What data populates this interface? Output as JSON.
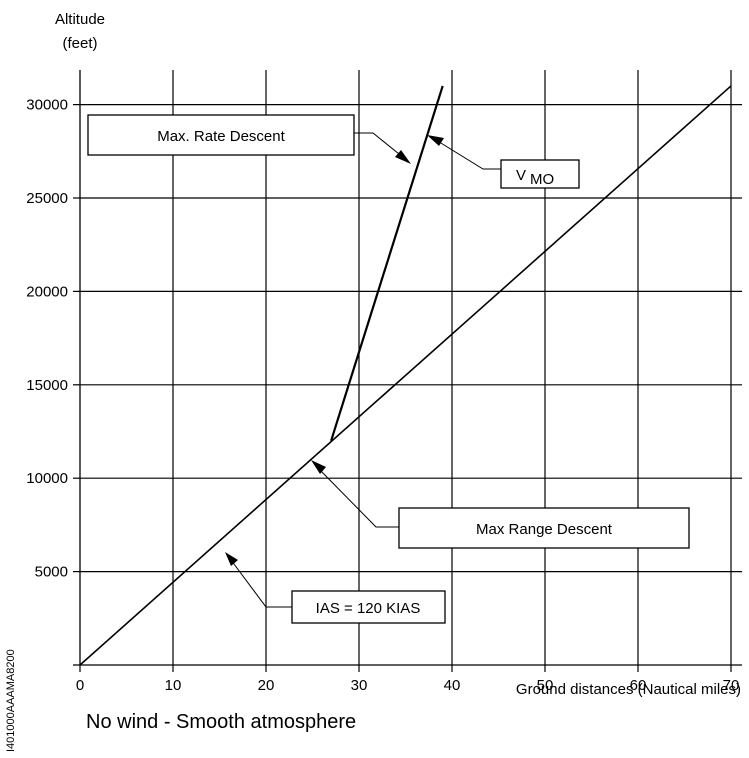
{
  "chart_data": {
    "type": "line",
    "title": "",
    "ylabel_line1": "Altitude",
    "ylabel_line2": "(feet)",
    "xlabel": "Ground distances (Nautical miles)",
    "x_ticks": [
      "0",
      "10",
      "20",
      "30",
      "40",
      "50",
      "60",
      "70"
    ],
    "y_ticks": [
      "5000",
      "10000",
      "15000",
      "20000",
      "25000",
      "30000"
    ],
    "xlim": [
      0,
      70
    ],
    "ylim": [
      0,
      32000
    ],
    "grid": true,
    "series": [
      {
        "name": "Max Range Descent",
        "x": [
          0,
          70
        ],
        "y": [
          0,
          31000
        ]
      },
      {
        "name": "Max. Rate Descent",
        "x": [
          27,
          39
        ],
        "y": [
          12000,
          31000
        ]
      }
    ],
    "annotations": {
      "max_rate": "Max. Rate Descent",
      "vmo_main": "V",
      "vmo_sub": "MO",
      "max_range": "Max Range Descent",
      "ias": "IAS = 120 KIAS"
    },
    "footnote": "No wind - Smooth atmosphere",
    "figure_code": "I401000AAAMA8200"
  }
}
